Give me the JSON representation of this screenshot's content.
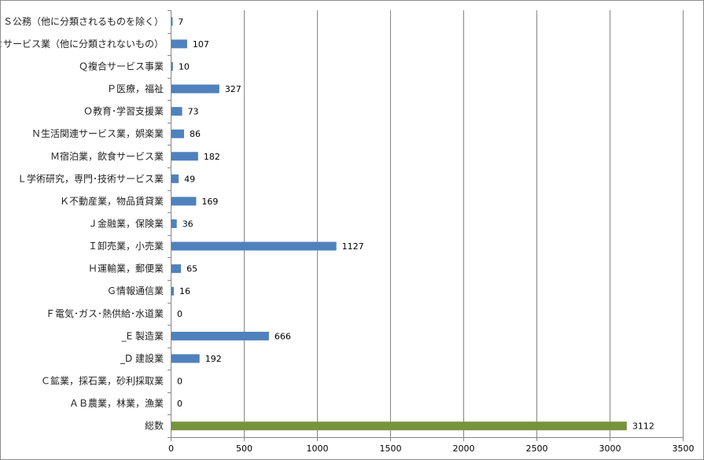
{
  "chart_data": {
    "type": "bar",
    "orientation": "horizontal",
    "categories": [
      "Ｓ公務（他に分類されるものを除く）",
      "Ｒサービス業（他に分類されないもの）",
      "Ｑ複合サービス事業",
      "Ｐ医療，福祉",
      "Ｏ教育･学習支援業",
      "Ｎ生活関連サービス業，娯楽業",
      "Ｍ宿泊業，飲食サービス業",
      "Ｌ学術研究，専門･技術サービス業",
      "Ｋ不動産業，物品賃貸業",
      "Ｊ金融業，保険業",
      "Ｉ卸売業，小売業",
      "Ｈ運輸業，郵便業",
      "Ｇ情報通信業",
      "Ｆ電気･ガス･熱供給･水道業",
      "_E 製造業",
      "_D 建設業",
      "Ｃ鉱業，採石業，砂利採取業",
      "ＡＢ農業，林業，漁業",
      "総数"
    ],
    "values": [
      7,
      107,
      10,
      327,
      73,
      86,
      182,
      49,
      169,
      36,
      1127,
      65,
      16,
      0,
      666,
      192,
      0,
      0,
      3112
    ],
    "value_labels": [
      "7",
      "107",
      "10",
      "327",
      "73",
      "86",
      "182",
      "49",
      "169",
      "36",
      "1127",
      "65",
      "16",
      "0",
      "666",
      "192",
      "0",
      "0",
      "3112"
    ],
    "xlim": [
      0,
      3500
    ],
    "x_ticks": [
      0,
      500,
      1000,
      1500,
      2000,
      2500,
      3000,
      3500
    ],
    "x_tick_labels": [
      "0",
      "500",
      "1000",
      "1500",
      "2000",
      "2500",
      "3000",
      "3500"
    ],
    "grid": "vertical",
    "legend": "none",
    "colors": {
      "bar": "#4f81bd",
      "total_bar": "#77933c",
      "grid": "#868686",
      "axis": "#868686"
    }
  }
}
